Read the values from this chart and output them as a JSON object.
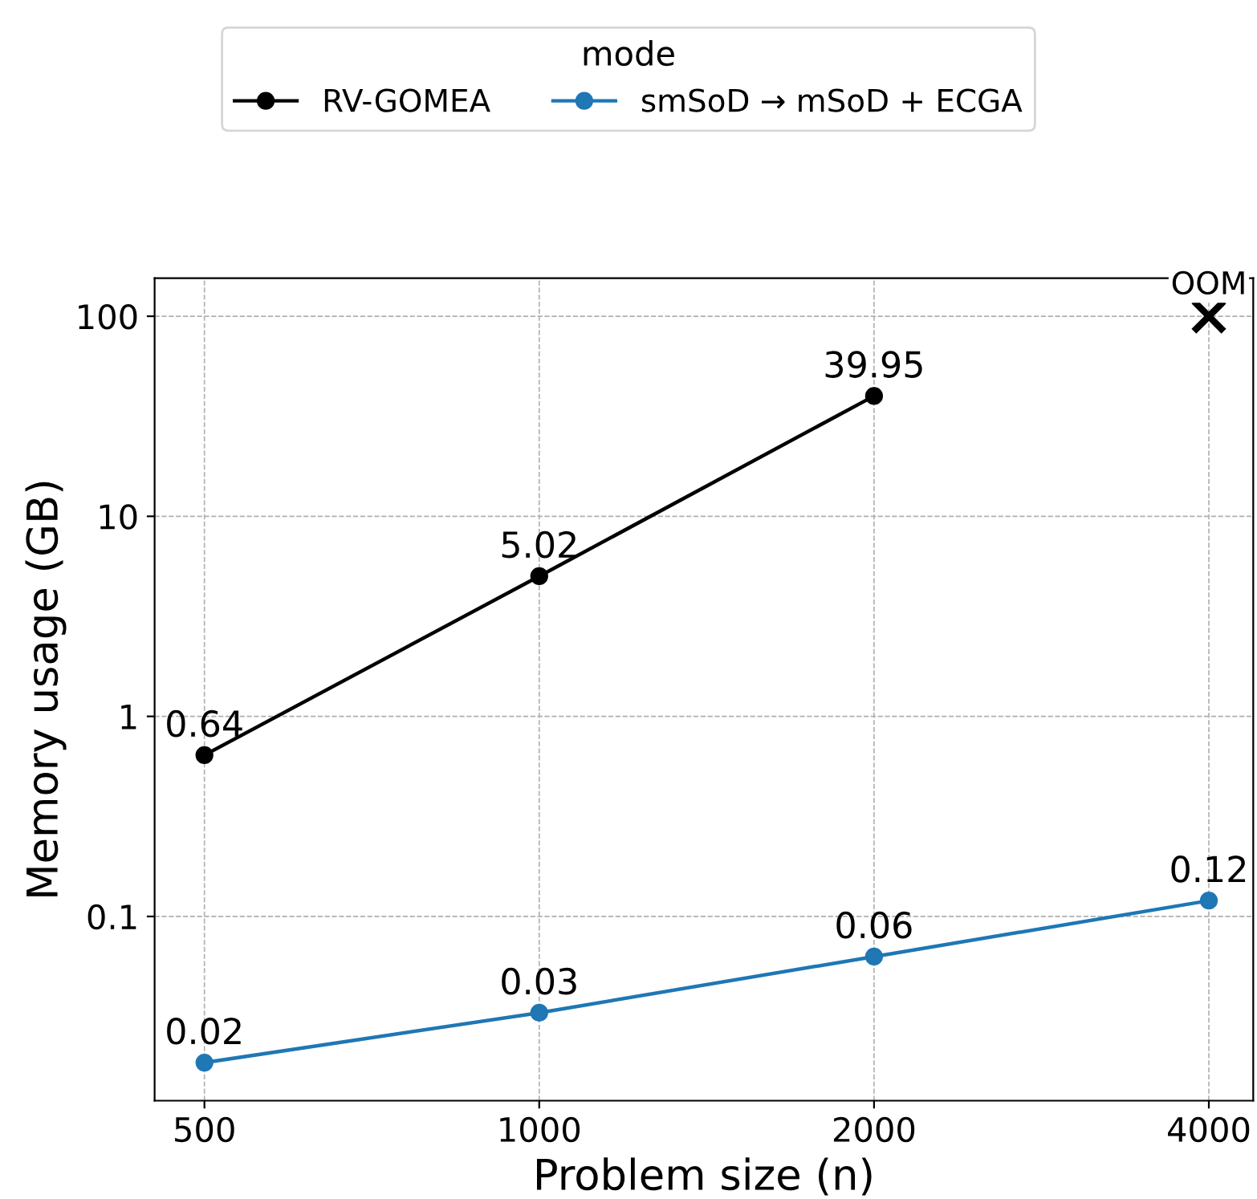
{
  "chart_data": {
    "type": "line",
    "xlabel": "Problem size (n)",
    "ylabel": "Memory usage (GB)",
    "legend_title": "mode",
    "legend": "top",
    "log": "xy",
    "grid": true,
    "marker": "circle",
    "line_style": "solid",
    "xlim": [
      451,
      4385
    ],
    "xticks": [
      500,
      1000,
      2000,
      4000
    ],
    "ylim": [
      0.012,
      155
    ],
    "yticks": [
      0.1,
      1,
      10,
      100
    ],
    "x": [
      500,
      1000,
      2000,
      4000
    ],
    "series": [
      {
        "name": "RV-GOMEA",
        "color": "#000000",
        "values": [
          0.64,
          5.02,
          39.95,
          null
        ],
        "value_labels": [
          "0.64",
          "5.02",
          "39.95",
          null
        ]
      },
      {
        "name": "smSoD → mSoD + ECGA",
        "color": "#1f77b4",
        "values": [
          0.0186,
          0.033,
          0.063,
          0.12
        ],
        "value_labels": [
          "0.02",
          "0.03",
          "0.06",
          "0.12"
        ]
      },
      {
        "type": "scatter",
        "marker": "cross",
        "color": "#000000",
        "values": [
          null,
          null,
          null,
          100
        ]
      }
    ],
    "annotations": [
      {
        "text": "OOM",
        "x": 4000,
        "y": 100
      }
    ]
  }
}
